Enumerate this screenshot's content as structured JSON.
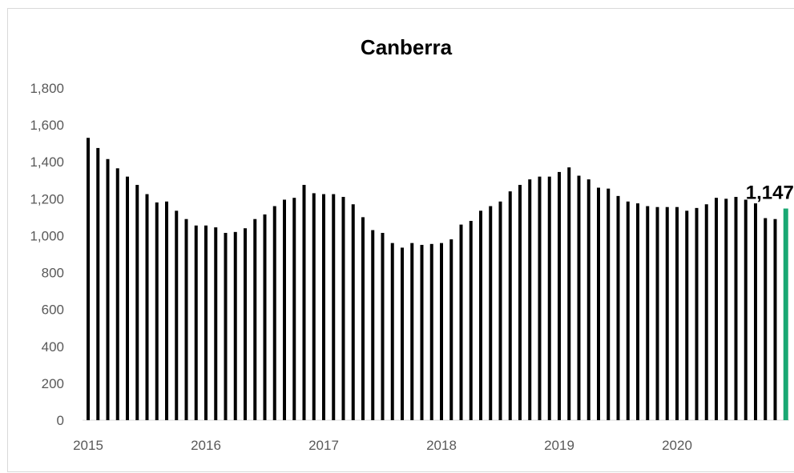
{
  "chart_data": {
    "type": "bar",
    "title": "Canberra",
    "xlabel": "",
    "ylabel": "",
    "ylim": [
      0,
      1800
    ],
    "y_ticks": [
      "0",
      "200",
      "400",
      "600",
      "800",
      "1,000",
      "1,200",
      "1,400",
      "1,600",
      "1,800"
    ],
    "x_tick_labels": [
      "2015",
      "2016",
      "2017",
      "2018",
      "2019",
      "2020"
    ],
    "grid": false,
    "legend": "none",
    "bar_color": "#000000",
    "highlight_color": "#1aa874",
    "highlight_label": "1,147",
    "series": [
      {
        "values": [
          1530,
          1475,
          1415,
          1365,
          1320,
          1275,
          1225,
          1180,
          1185,
          1135,
          1090,
          1055,
          1055,
          1045,
          1015,
          1020,
          1040,
          1090,
          1115,
          1160,
          1195,
          1205,
          1275,
          1230,
          1225,
          1225,
          1210,
          1170,
          1100,
          1030,
          1015,
          960,
          935,
          960,
          950,
          955,
          960,
          980,
          1060,
          1080,
          1135,
          1160,
          1185,
          1240,
          1275,
          1305,
          1320,
          1320,
          1345,
          1370,
          1325,
          1305,
          1260,
          1255,
          1215,
          1185,
          1175,
          1160,
          1155,
          1155,
          1155,
          1135,
          1150,
          1170,
          1205,
          1200,
          1210,
          1195,
          1175,
          1095,
          1090,
          1147
        ]
      }
    ]
  }
}
